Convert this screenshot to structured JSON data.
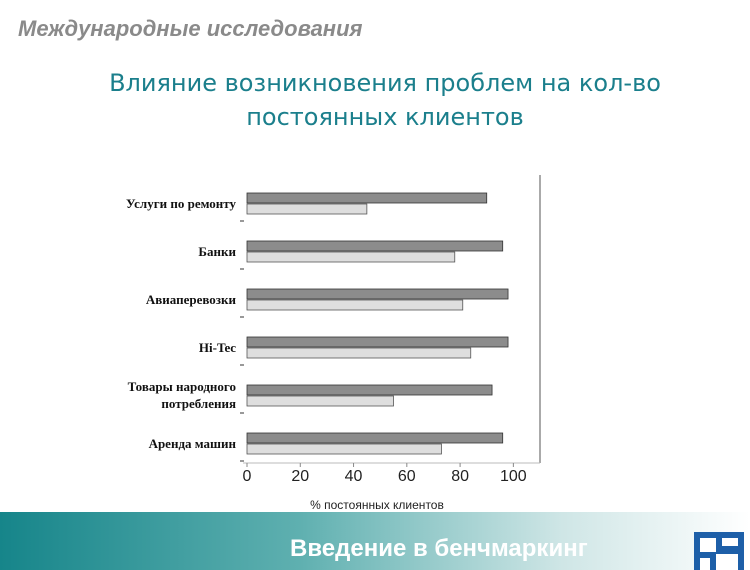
{
  "header": "Международные исследования",
  "chart_data": {
    "type": "barh",
    "title": "Влияние возникновения проблем на кол-во постоянных клиентов",
    "x_label": "% постоянных клиентов",
    "categories": [
      "Услуги по ремонту",
      "Банки",
      "Авиаперевозки",
      "Hi-Tec",
      "Товары народного потребления",
      "Аренда машин"
    ],
    "series": [
      {
        "color": "#8c8c8c",
        "values": [
          90,
          96,
          98,
          98,
          92,
          96
        ]
      },
      {
        "color": "#dedede",
        "values": [
          45,
          78,
          81,
          84,
          55,
          73
        ]
      }
    ],
    "xlim": [
      0,
      110
    ],
    "xticks": [
      0,
      20,
      40,
      60,
      80,
      100
    ]
  },
  "footer": "Введение в бенчмаркинг"
}
